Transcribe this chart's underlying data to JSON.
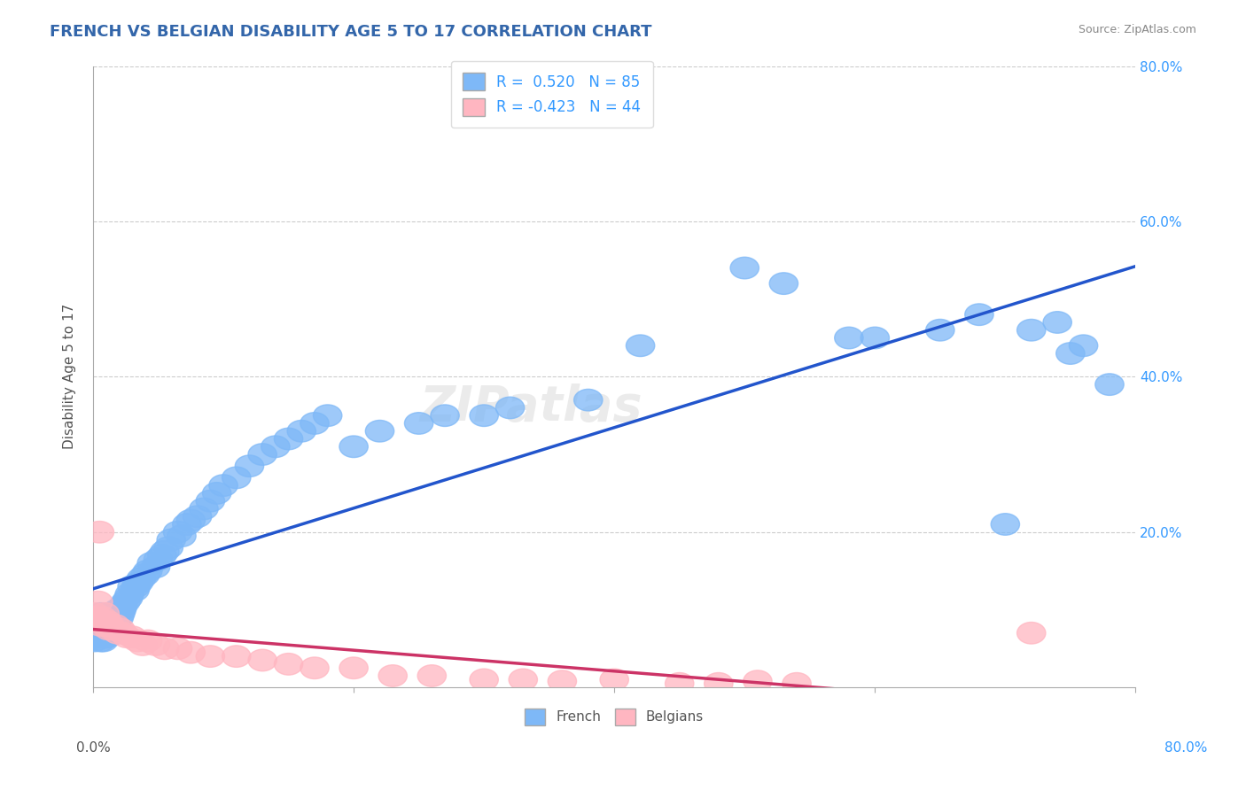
{
  "title": "FRENCH VS BELGIAN DISABILITY AGE 5 TO 17 CORRELATION CHART",
  "source": "Source: ZipAtlas.com",
  "ylabel": "Disability Age 5 to 17",
  "xlim": [
    0,
    0.8
  ],
  "ylim": [
    0,
    0.8
  ],
  "ytick_values": [
    0.0,
    0.2,
    0.4,
    0.6,
    0.8
  ],
  "french_R": 0.52,
  "french_N": 85,
  "belgian_R": -0.423,
  "belgian_N": 44,
  "french_color": "#7EB8F7",
  "french_line_color": "#2255CC",
  "belgian_color": "#FFB6C1",
  "belgian_line_color": "#CC3366",
  "french_scatter_x": [
    0.001,
    0.002,
    0.003,
    0.003,
    0.004,
    0.005,
    0.005,
    0.006,
    0.006,
    0.007,
    0.007,
    0.008,
    0.008,
    0.009,
    0.009,
    0.01,
    0.01,
    0.011,
    0.011,
    0.012,
    0.013,
    0.014,
    0.015,
    0.016,
    0.017,
    0.018,
    0.019,
    0.02,
    0.021,
    0.022,
    0.023,
    0.025,
    0.027,
    0.028,
    0.03,
    0.032,
    0.033,
    0.035,
    0.037,
    0.04,
    0.042,
    0.045,
    0.048,
    0.05,
    0.053,
    0.055,
    0.058,
    0.06,
    0.065,
    0.068,
    0.072,
    0.075,
    0.08,
    0.085,
    0.09,
    0.095,
    0.1,
    0.11,
    0.12,
    0.13,
    0.14,
    0.15,
    0.16,
    0.17,
    0.18,
    0.2,
    0.22,
    0.25,
    0.27,
    0.3,
    0.32,
    0.38,
    0.42,
    0.5,
    0.53,
    0.58,
    0.6,
    0.65,
    0.68,
    0.7,
    0.72,
    0.74,
    0.75,
    0.76,
    0.78
  ],
  "french_scatter_y": [
    0.06,
    0.065,
    0.07,
    0.08,
    0.075,
    0.085,
    0.09,
    0.06,
    0.095,
    0.07,
    0.08,
    0.06,
    0.075,
    0.065,
    0.085,
    0.07,
    0.09,
    0.075,
    0.065,
    0.08,
    0.095,
    0.085,
    0.09,
    0.075,
    0.085,
    0.095,
    0.1,
    0.09,
    0.095,
    0.1,
    0.105,
    0.11,
    0.115,
    0.12,
    0.13,
    0.125,
    0.13,
    0.135,
    0.14,
    0.145,
    0.15,
    0.16,
    0.155,
    0.165,
    0.17,
    0.175,
    0.18,
    0.19,
    0.2,
    0.195,
    0.21,
    0.215,
    0.22,
    0.23,
    0.24,
    0.25,
    0.26,
    0.27,
    0.285,
    0.3,
    0.31,
    0.32,
    0.33,
    0.34,
    0.35,
    0.31,
    0.33,
    0.34,
    0.35,
    0.35,
    0.36,
    0.37,
    0.44,
    0.54,
    0.52,
    0.45,
    0.45,
    0.46,
    0.48,
    0.21,
    0.46,
    0.47,
    0.43,
    0.44,
    0.39
  ],
  "belgian_scatter_x": [
    0.001,
    0.002,
    0.003,
    0.004,
    0.005,
    0.006,
    0.007,
    0.008,
    0.009,
    0.01,
    0.011,
    0.012,
    0.013,
    0.015,
    0.017,
    0.019,
    0.021,
    0.023,
    0.026,
    0.03,
    0.034,
    0.038,
    0.042,
    0.048,
    0.055,
    0.065,
    0.075,
    0.09,
    0.11,
    0.13,
    0.15,
    0.17,
    0.2,
    0.23,
    0.26,
    0.3,
    0.33,
    0.36,
    0.4,
    0.45,
    0.48,
    0.51,
    0.54,
    0.72
  ],
  "belgian_scatter_y": [
    0.095,
    0.09,
    0.085,
    0.11,
    0.2,
    0.08,
    0.09,
    0.085,
    0.095,
    0.08,
    0.085,
    0.075,
    0.08,
    0.075,
    0.08,
    0.07,
    0.075,
    0.07,
    0.065,
    0.065,
    0.06,
    0.055,
    0.06,
    0.055,
    0.05,
    0.05,
    0.045,
    0.04,
    0.04,
    0.035,
    0.03,
    0.025,
    0.025,
    0.015,
    0.015,
    0.01,
    0.01,
    0.008,
    0.01,
    0.005,
    0.005,
    0.008,
    0.005,
    0.07
  ],
  "watermark": "ZIPatlas",
  "background_color": "#FFFFFF",
  "grid_color": "#CCCCCC"
}
